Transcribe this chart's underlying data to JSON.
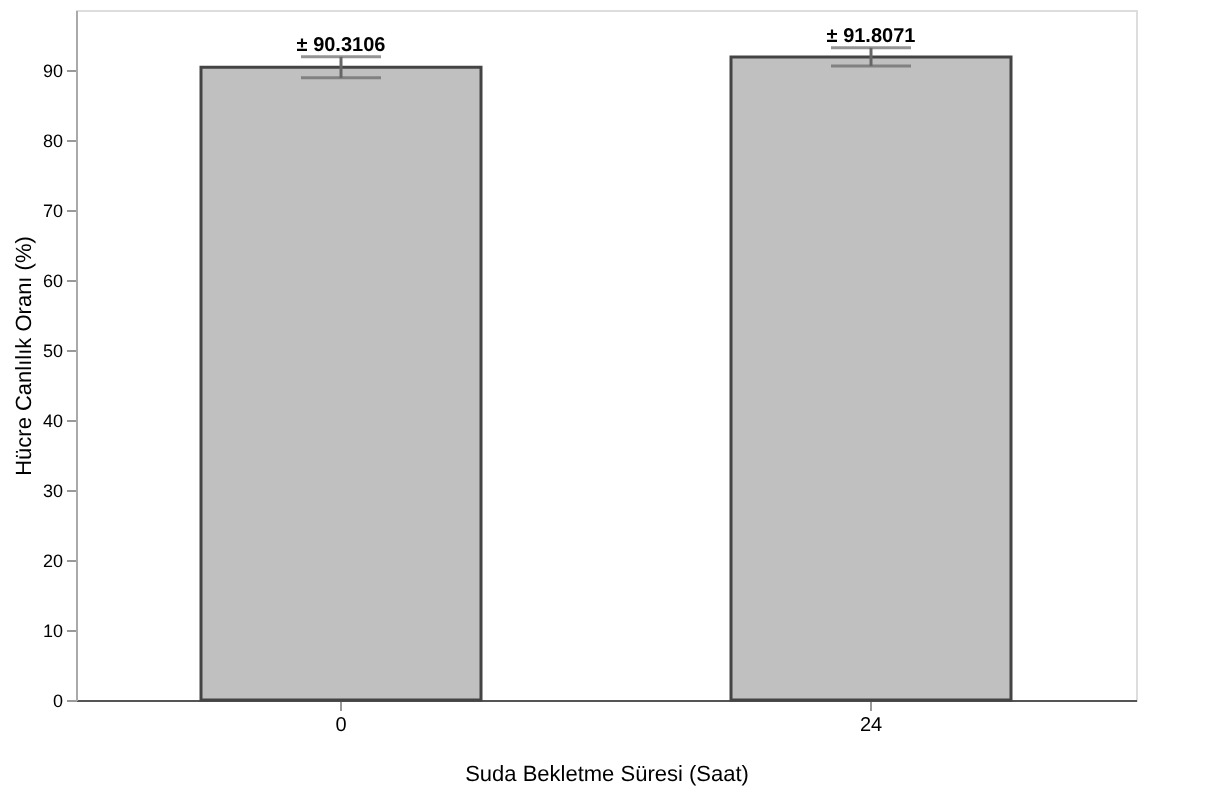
{
  "chart_data": {
    "type": "bar",
    "xlabel": "Suda Bekletme Süresi (Saat)",
    "ylabel": "Hücre Canlılık Oranı (%)",
    "categories": [
      "0",
      "24"
    ],
    "series": [
      {
        "color": "#c0c0c0",
        "values": [
          90.3106,
          91.8071
        ],
        "errors": [
          1.5,
          1.3
        ],
        "value_labels": [
          "± 90.3106",
          "± 91.8071"
        ]
      }
    ],
    "ylim": [
      0,
      98.5
    ],
    "yticks": [
      0,
      10,
      20,
      30,
      40,
      50,
      60,
      70,
      80,
      90
    ],
    "grid": false
  }
}
